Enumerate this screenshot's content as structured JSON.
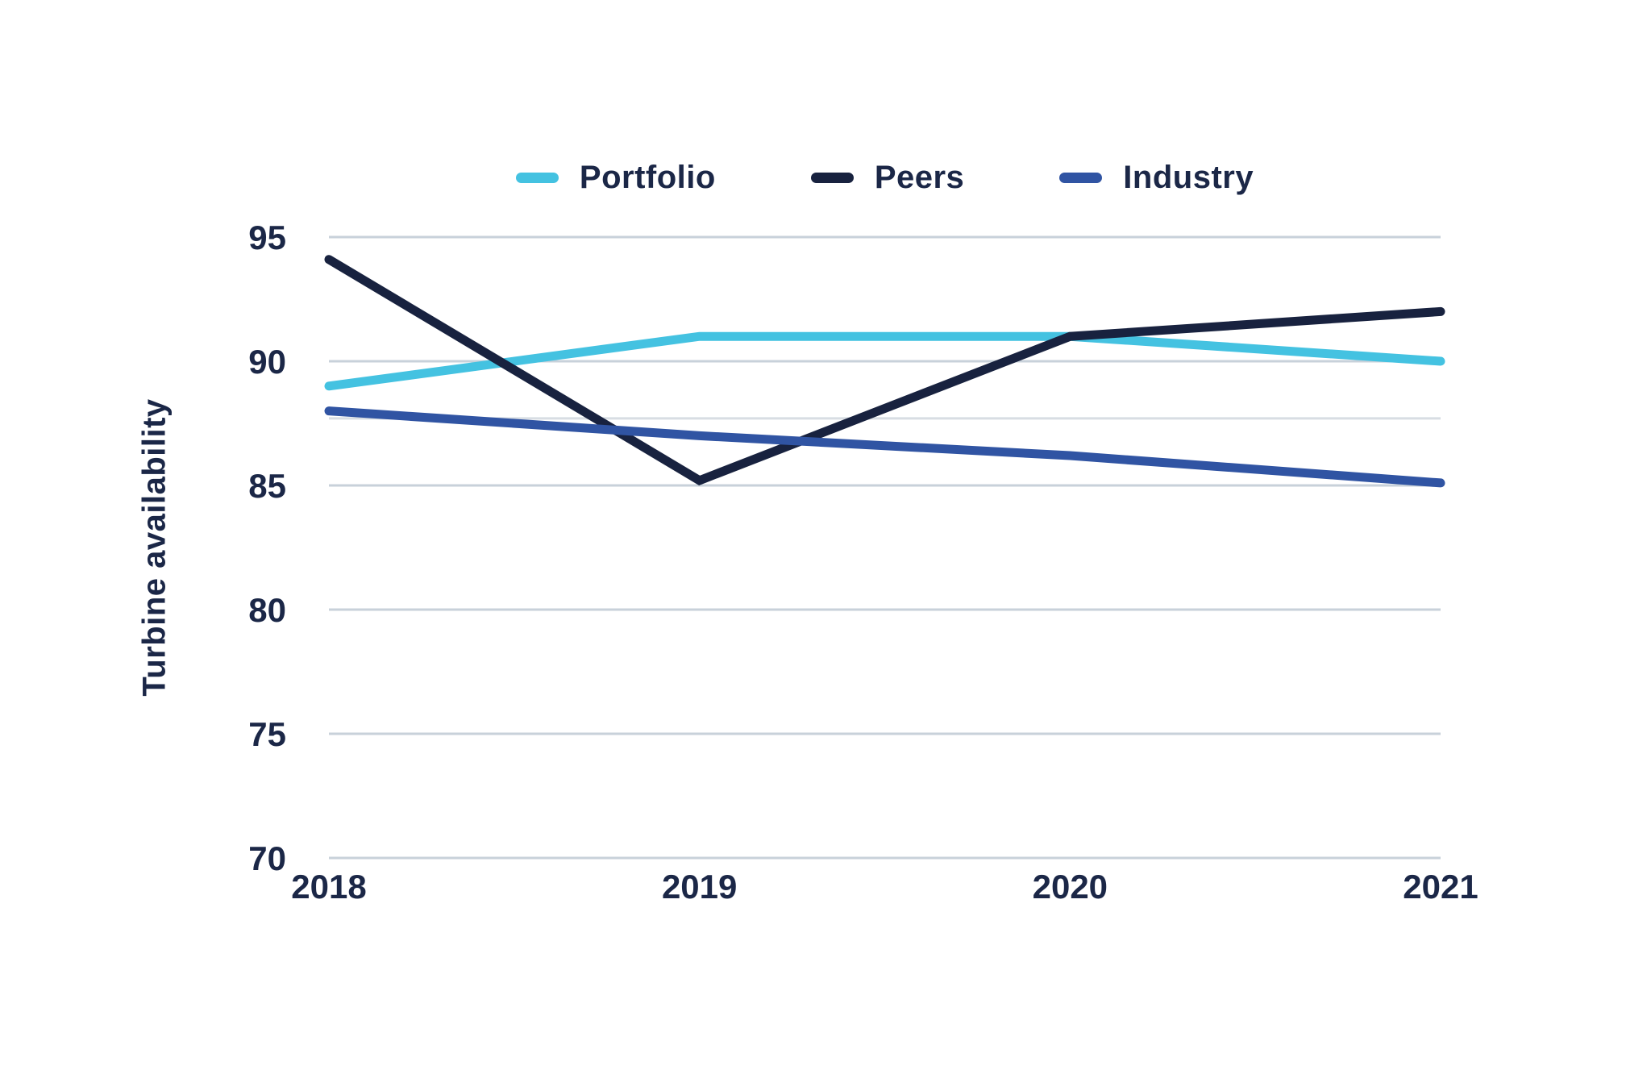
{
  "y_axis_title": "Turbine availability",
  "chart_data": {
    "type": "line",
    "title": "",
    "x": [
      "2018",
      "2019",
      "2020",
      "2021"
    ],
    "xlabel": "",
    "ylabel": "Turbine availability",
    "ylim": [
      70,
      95
    ],
    "yticks": [
      70,
      75,
      80,
      85,
      90,
      95
    ],
    "reference_line": 87.7,
    "grid": "horizontal",
    "legend_position": "top",
    "colors": {
      "portfolio": "#44C2E1",
      "peers": "#18223F",
      "industry": "#3054A3",
      "gridline": "#C8D1DA",
      "reference_line": "#D8DDE3",
      "text": "#1B2747"
    },
    "series": [
      {
        "name": "Portfolio",
        "color": "#44C2E1",
        "values": [
          89.0,
          91.0,
          91.0,
          90.0
        ]
      },
      {
        "name": "Peers",
        "color": "#18223F",
        "values": [
          94.1,
          85.2,
          91.0,
          92.0
        ]
      },
      {
        "name": "Industry",
        "color": "#3054A3",
        "values": [
          88.0,
          87.0,
          86.2,
          85.1
        ]
      }
    ]
  }
}
